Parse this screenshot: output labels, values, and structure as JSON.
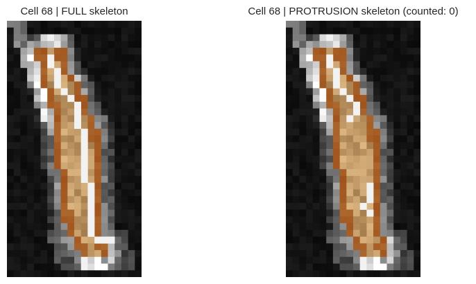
{
  "panels": [
    {
      "id": "full",
      "title": "Cell 68 | FULL skeleton",
      "skeleton_type": "full"
    },
    {
      "id": "protrusion",
      "title": "Cell 68 | PROTRUSION skeleton (counted: 0)",
      "skeleton_type": "protrusion",
      "counted": 0
    }
  ],
  "colors": {
    "background": "#050505",
    "halo_gray": "#7a7a7a",
    "cell_outline": "#a0521a",
    "cell_fill_light": "#e6c08a",
    "cell_fill_mid": "#c89a5c",
    "cell_fill_dark": "#8a6234",
    "skeleton": "#f2f2f2"
  }
}
